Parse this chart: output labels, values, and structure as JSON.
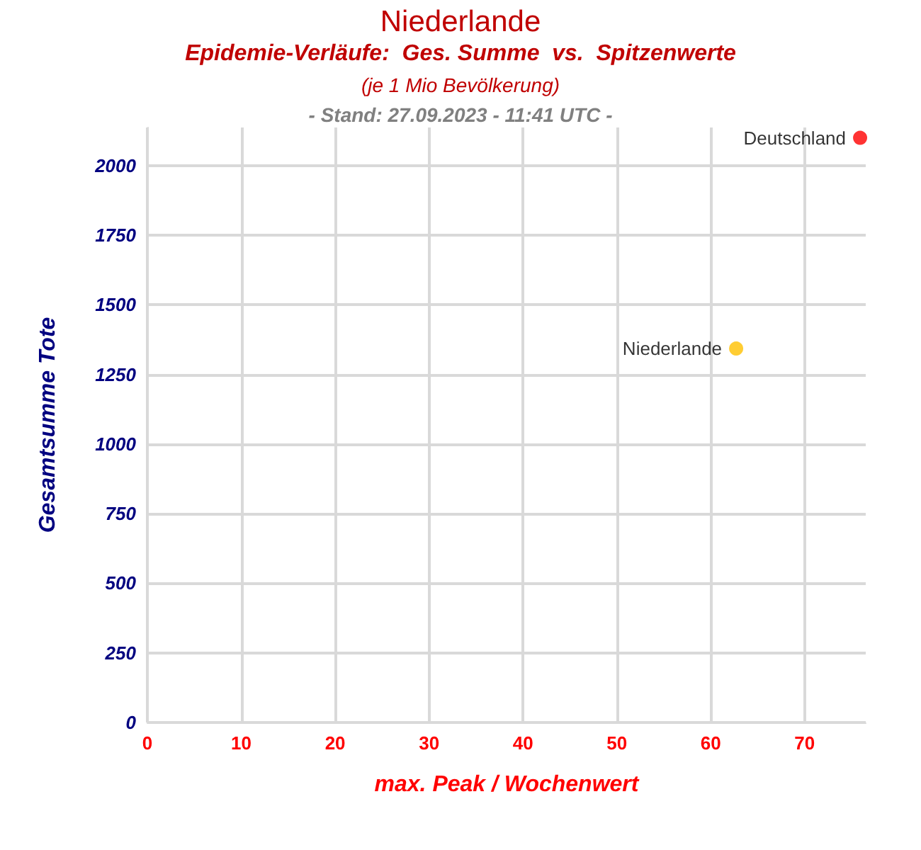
{
  "chart_data": {
    "type": "scatter",
    "title": "Niederlande",
    "subtitle": "Epidemie-Verläufe:  Ges. Summe  vs.  Spitzenwerte",
    "annotations": [
      "(je 1 Mio Bevölkerung)",
      "- Stand: 27.09.2023 - 11:41 UTC -"
    ],
    "xlabel": "max. Peak / Wochenwert",
    "ylabel": "Gesamtsumme Tote",
    "series": [
      {
        "name": "Deutschland",
        "color": "#ff0000",
        "x": [
          75.9
        ],
        "values": [
          2100
        ]
      },
      {
        "name": "Niederlande",
        "color": "#ffc000",
        "x": [
          62.7
        ],
        "values": [
          1343
        ]
      }
    ],
    "xlim": [
      0,
      76.5
    ],
    "ylim": [
      0,
      2137
    ],
    "xticks": [
      0,
      10,
      20,
      30,
      40,
      50,
      60,
      70
    ],
    "yticks": [
      0,
      250,
      500,
      750,
      1000,
      1250,
      1500,
      1750,
      2000
    ],
    "grid": true,
    "marker": "circle"
  }
}
